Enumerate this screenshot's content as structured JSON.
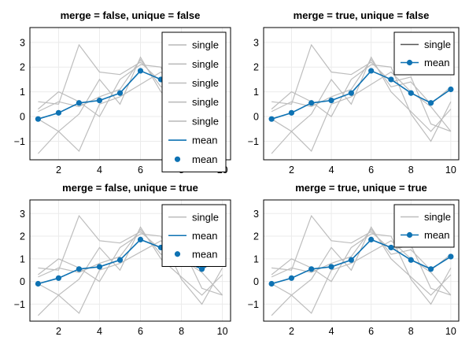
{
  "colors": {
    "single": "#bdbdbd",
    "mean": "#0e72b3",
    "legend_single_merged": "#555555",
    "grid": "#ebebeb"
  },
  "chart_data": [
    {
      "type": "line",
      "title": "merge = false, unique = false",
      "x": [
        1,
        2,
        3,
        4,
        5,
        6,
        7,
        8,
        9,
        10
      ],
      "xticks": [
        2,
        4,
        6,
        8,
        10
      ],
      "yticks": [
        -1,
        0,
        1,
        2,
        3
      ],
      "xlim": [
        0.6,
        10.4
      ],
      "ylim": [
        -1.75,
        3.6
      ],
      "series": [
        {
          "kind": "single",
          "values": [
            -1.5,
            -0.6,
            0.1,
            1.5,
            0.5,
            2.4,
            1.0,
            0.2,
            -0.6,
            0.3
          ]
        },
        {
          "kind": "single",
          "values": [
            0.3,
            1.0,
            0.6,
            0.0,
            1.5,
            2.1,
            2.0,
            0.1,
            -1.0,
            0.6
          ]
        },
        {
          "kind": "single",
          "values": [
            0.6,
            0.5,
            2.9,
            1.8,
            1.7,
            2.2,
            1.4,
            1.6,
            -0.3,
            -0.6
          ]
        },
        {
          "kind": "single",
          "values": [
            -0.1,
            -0.6,
            -1.4,
            0.5,
            0.8,
            1.3,
            1.8,
            1.0,
            0.4,
            -0.6
          ]
        },
        {
          "kind": "single",
          "values": [
            0.2,
            0.6,
            0.4,
            0.8,
            1.1,
            2.3,
            1.2,
            1.4,
            0.5,
            1.2
          ]
        },
        {
          "kind": "mean",
          "values": [
            -0.1,
            0.15,
            0.55,
            0.65,
            0.95,
            1.85,
            1.5,
            0.95,
            0.55,
            1.1
          ]
        }
      ],
      "legend": [
        {
          "label": "single",
          "kind": "line",
          "color": "#bdbdbd"
        },
        {
          "label": "single",
          "kind": "line",
          "color": "#bdbdbd"
        },
        {
          "label": "single",
          "kind": "line",
          "color": "#bdbdbd"
        },
        {
          "label": "single",
          "kind": "line",
          "color": "#bdbdbd"
        },
        {
          "label": "single",
          "kind": "line",
          "color": "#bdbdbd"
        },
        {
          "label": "mean",
          "kind": "line",
          "color": "#0e72b3"
        },
        {
          "label": "mean",
          "kind": "marker",
          "color": "#0e72b3"
        }
      ],
      "legend_position": "top-right"
    },
    {
      "type": "line",
      "title": "merge = true, unique = false",
      "x": [
        1,
        2,
        3,
        4,
        5,
        6,
        7,
        8,
        9,
        10
      ],
      "xticks": [
        2,
        4,
        6,
        8,
        10
      ],
      "yticks": [
        -1,
        0,
        1,
        2,
        3
      ],
      "xlim": [
        0.6,
        10.4
      ],
      "ylim": [
        -1.75,
        3.6
      ],
      "series": [
        {
          "kind": "single",
          "values": [
            -1.5,
            -0.6,
            0.1,
            1.5,
            0.5,
            2.4,
            1.0,
            0.2,
            -0.6,
            0.3
          ]
        },
        {
          "kind": "single",
          "values": [
            0.3,
            1.0,
            0.6,
            0.0,
            1.5,
            2.1,
            2.0,
            0.1,
            -1.0,
            0.6
          ]
        },
        {
          "kind": "single",
          "values": [
            0.6,
            0.5,
            2.9,
            1.8,
            1.7,
            2.2,
            1.4,
            1.6,
            -0.3,
            -0.6
          ]
        },
        {
          "kind": "single",
          "values": [
            -0.1,
            -0.6,
            -1.4,
            0.5,
            0.8,
            1.3,
            1.8,
            1.0,
            0.4,
            -0.6
          ]
        },
        {
          "kind": "single",
          "values": [
            0.2,
            0.6,
            0.4,
            0.8,
            1.1,
            2.3,
            1.2,
            1.4,
            0.5,
            1.2
          ]
        },
        {
          "kind": "mean",
          "values": [
            -0.1,
            0.15,
            0.55,
            0.65,
            0.95,
            1.85,
            1.5,
            0.95,
            0.55,
            1.1
          ]
        }
      ],
      "legend": [
        {
          "label": "single",
          "kind": "line",
          "color": "#555555"
        },
        {
          "label": "mean",
          "kind": "line+marker",
          "color": "#0e72b3"
        }
      ],
      "legend_position": "top-right"
    },
    {
      "type": "line",
      "title": "merge = false, unique = true",
      "x": [
        1,
        2,
        3,
        4,
        5,
        6,
        7,
        8,
        9,
        10
      ],
      "xticks": [
        2,
        4,
        6,
        8,
        10
      ],
      "yticks": [
        -1,
        0,
        1,
        2,
        3
      ],
      "xlim": [
        0.6,
        10.4
      ],
      "ylim": [
        -1.75,
        3.6
      ],
      "series": [
        {
          "kind": "single",
          "values": [
            -1.5,
            -0.6,
            0.1,
            1.5,
            0.5,
            2.4,
            1.0,
            0.2,
            -0.6,
            0.3
          ]
        },
        {
          "kind": "single",
          "values": [
            0.3,
            1.0,
            0.6,
            0.0,
            1.5,
            2.1,
            2.0,
            0.1,
            -1.0,
            0.6
          ]
        },
        {
          "kind": "single",
          "values": [
            0.6,
            0.5,
            2.9,
            1.8,
            1.7,
            2.2,
            1.4,
            1.6,
            -0.3,
            -0.6
          ]
        },
        {
          "kind": "single",
          "values": [
            -0.1,
            -0.6,
            -1.4,
            0.5,
            0.8,
            1.3,
            1.8,
            1.0,
            0.4,
            -0.6
          ]
        },
        {
          "kind": "single",
          "values": [
            0.2,
            0.6,
            0.4,
            0.8,
            1.1,
            2.3,
            1.2,
            1.4,
            0.5,
            1.2
          ]
        },
        {
          "kind": "mean",
          "values": [
            -0.1,
            0.15,
            0.55,
            0.65,
            0.95,
            1.85,
            1.5,
            0.95,
            0.55,
            1.1
          ]
        }
      ],
      "legend": [
        {
          "label": "single",
          "kind": "line",
          "color": "#bdbdbd"
        },
        {
          "label": "mean",
          "kind": "line",
          "color": "#0e72b3"
        },
        {
          "label": "mean",
          "kind": "marker",
          "color": "#0e72b3"
        }
      ],
      "legend_position": "top-right"
    },
    {
      "type": "line",
      "title": "merge = true, unique = true",
      "x": [
        1,
        2,
        3,
        4,
        5,
        6,
        7,
        8,
        9,
        10
      ],
      "xticks": [
        2,
        4,
        6,
        8,
        10
      ],
      "yticks": [
        -1,
        0,
        1,
        2,
        3
      ],
      "xlim": [
        0.6,
        10.4
      ],
      "ylim": [
        -1.75,
        3.6
      ],
      "series": [
        {
          "kind": "single",
          "values": [
            -1.5,
            -0.6,
            0.1,
            1.5,
            0.5,
            2.4,
            1.0,
            0.2,
            -0.6,
            0.3
          ]
        },
        {
          "kind": "single",
          "values": [
            0.3,
            1.0,
            0.6,
            0.0,
            1.5,
            2.1,
            2.0,
            0.1,
            -1.0,
            0.6
          ]
        },
        {
          "kind": "single",
          "values": [
            0.6,
            0.5,
            2.9,
            1.8,
            1.7,
            2.2,
            1.4,
            1.6,
            -0.3,
            -0.6
          ]
        },
        {
          "kind": "single",
          "values": [
            -0.1,
            -0.6,
            -1.4,
            0.5,
            0.8,
            1.3,
            1.8,
            1.0,
            0.4,
            -0.6
          ]
        },
        {
          "kind": "single",
          "values": [
            0.2,
            0.6,
            0.4,
            0.8,
            1.1,
            2.3,
            1.2,
            1.4,
            0.5,
            1.2
          ]
        },
        {
          "kind": "mean",
          "values": [
            -0.1,
            0.15,
            0.55,
            0.65,
            0.95,
            1.85,
            1.5,
            0.95,
            0.55,
            1.1
          ]
        }
      ],
      "legend": [
        {
          "label": "single",
          "kind": "line",
          "color": "#bdbdbd"
        },
        {
          "label": "mean",
          "kind": "line+marker",
          "color": "#0e72b3"
        }
      ],
      "legend_position": "top-right"
    }
  ]
}
